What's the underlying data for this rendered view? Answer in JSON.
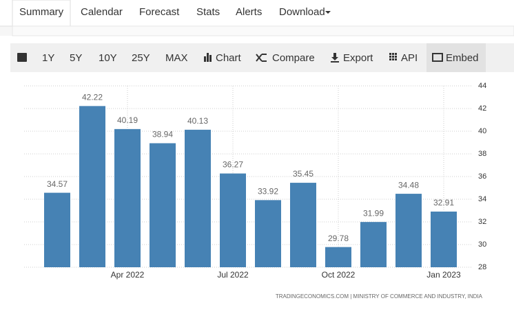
{
  "tabs": [
    "Summary",
    "Calendar",
    "Forecast",
    "Stats",
    "Alerts",
    "Download"
  ],
  "toolbar": [
    "1Y",
    "5Y",
    "10Y",
    "25Y",
    "MAX",
    "Chart",
    "Compare",
    "Export",
    "API",
    "Embed"
  ],
  "chart_data": {
    "type": "bar",
    "categories": [
      null,
      null,
      "Apr 2022",
      null,
      null,
      "Jul 2022",
      null,
      null,
      "Oct 2022",
      null,
      null,
      "Jan 2023"
    ],
    "values": [
      34.57,
      42.22,
      40.19,
      38.94,
      40.13,
      36.27,
      33.92,
      35.45,
      29.78,
      31.99,
      34.48,
      32.91
    ],
    "color": "#4682b4",
    "ylim": [
      28,
      44
    ],
    "yticks": [
      28,
      30,
      32,
      34,
      36,
      38,
      40,
      42,
      44
    ],
    "grid": true,
    "source": "TRADINGECONOMICS.COM | MINISTRY OF COMMERCE AND INDUSTRY, INDIA"
  }
}
